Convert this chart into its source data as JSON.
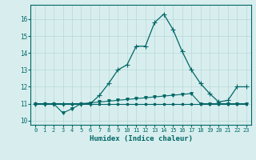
{
  "xlabel": "Humidex (Indice chaleur)",
  "background_color": "#d8eeee",
  "grid_color": "#b8d8d8",
  "line_color": "#006666",
  "xlim": [
    -0.5,
    23.5
  ],
  "ylim": [
    9.75,
    16.85
  ],
  "yticks": [
    10,
    11,
    12,
    13,
    14,
    15,
    16
  ],
  "xticks": [
    0,
    1,
    2,
    3,
    4,
    5,
    6,
    7,
    8,
    9,
    10,
    11,
    12,
    13,
    14,
    15,
    16,
    17,
    18,
    19,
    20,
    21,
    22,
    23
  ],
  "series1_x": [
    0,
    1,
    2,
    3,
    4,
    5,
    6,
    7,
    8,
    9,
    10,
    11,
    12,
    13,
    14,
    15,
    16,
    17,
    18,
    19,
    20,
    21,
    22,
    23
  ],
  "series1_y": [
    11,
    11,
    11,
    11,
    11,
    11,
    11,
    11,
    11,
    11,
    11,
    11,
    11,
    11,
    11,
    11,
    11,
    11,
    11,
    11,
    11,
    11,
    11,
    11
  ],
  "series2_x": [
    0,
    1,
    2,
    3,
    4,
    5,
    6,
    7,
    8,
    9,
    10,
    11,
    12,
    13,
    14,
    15,
    16,
    17,
    18,
    19,
    20,
    21,
    22,
    23
  ],
  "series2_y": [
    11.0,
    11.0,
    11.0,
    10.45,
    10.7,
    11.0,
    11.05,
    11.1,
    11.15,
    11.2,
    11.25,
    11.3,
    11.35,
    11.4,
    11.45,
    11.5,
    11.55,
    11.6,
    11.0,
    11.0,
    11.0,
    11.0,
    11.0,
    11.0
  ],
  "series3_x": [
    0,
    1,
    2,
    3,
    4,
    5,
    6,
    7,
    8,
    9,
    10,
    11,
    12,
    13,
    14,
    15,
    16,
    17,
    18,
    19,
    20,
    21,
    22,
    23
  ],
  "series3_y": [
    11,
    11,
    11,
    11,
    11,
    11,
    11,
    11.5,
    12.2,
    13.0,
    13.3,
    14.4,
    14.4,
    15.8,
    16.3,
    15.4,
    14.1,
    13.0,
    12.2,
    11.6,
    11.1,
    11.2,
    12.0,
    12.0
  ]
}
